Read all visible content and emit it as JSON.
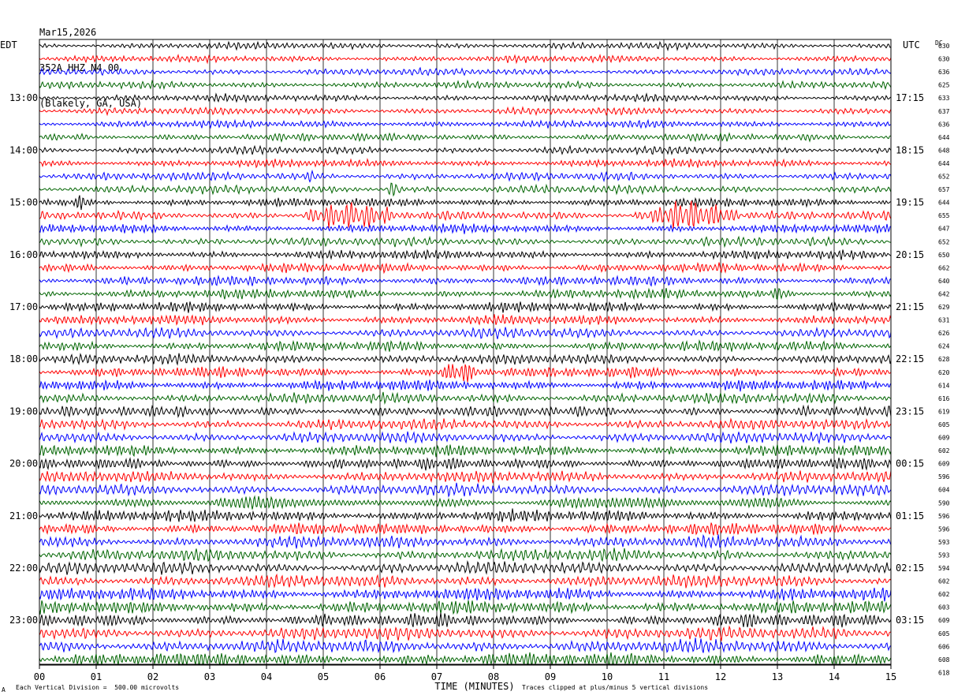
{
  "header": {
    "date": "Mar15,2026",
    "station": "352A HHZ N4 00",
    "location": "(Blakely, GA, USA)"
  },
  "left_tz": "EDT",
  "right_tz": "UTC",
  "dc_label": "DC",
  "footer": {
    "left_mark": "A",
    "scale_note": "Each Vertical Division =  500.00 microvolts",
    "clip_note": "Traces clipped at plus/minus 5 vertical divisions"
  },
  "colors": {
    "trace_cycle": [
      "#000000",
      "#ff0000",
      "#0000ff",
      "#006400"
    ]
  },
  "chart_data": {
    "type": "line",
    "subtype": "helicorder",
    "xlabel": "TIME (MINUTES)",
    "x_ticks": [
      "00",
      "01",
      "02",
      "03",
      "04",
      "05",
      "06",
      "07",
      "08",
      "09",
      "10",
      "11",
      "12",
      "13",
      "14",
      "15"
    ],
    "x_range": [
      0,
      15
    ],
    "rows_per_hour": 4,
    "left_hour_labels": [
      "13:00",
      "14:00",
      "15:00",
      "16:00",
      "17:00",
      "18:00",
      "19:00",
      "20:00",
      "21:00",
      "22:00",
      "23:00"
    ],
    "right_hour_labels": [
      "17:15",
      "18:15",
      "19:15",
      "20:15",
      "21:15",
      "22:15",
      "23:15",
      "00:15",
      "01:15",
      "02:15",
      "03:15"
    ],
    "dc_offsets": [
      630,
      630,
      636,
      625,
      633,
      637,
      636,
      644,
      648,
      644,
      652,
      657,
      644,
      655,
      647,
      652,
      650,
      662,
      640,
      642,
      629,
      631,
      626,
      624,
      628,
      620,
      614,
      616,
      619,
      605,
      609,
      602,
      609,
      596,
      604,
      590,
      596,
      596,
      593,
      593,
      594,
      602,
      602,
      603,
      609,
      605,
      606,
      608,
      618
    ],
    "events": [
      {
        "row": 10,
        "start_min": 4.7,
        "end_min": 4.9,
        "amp": 2.5
      },
      {
        "row": 12,
        "start_min": 0.6,
        "end_min": 0.9,
        "amp": 2.0
      },
      {
        "row": 11,
        "start_min": 6.1,
        "end_min": 6.4,
        "amp": 2.0
      },
      {
        "row": 13,
        "start_min": 4.6,
        "end_min": 6.4,
        "amp": 3.5
      },
      {
        "row": 13,
        "start_min": 10.5,
        "end_min": 12.4,
        "amp": 3.5
      },
      {
        "row": 13,
        "start_min": 11.35,
        "end_min": 11.55,
        "amp": 6.0
      },
      {
        "row": 19,
        "start_min": 12.9,
        "end_min": 13.2,
        "amp": 1.5
      },
      {
        "row": 25,
        "start_min": 7.0,
        "end_min": 7.8,
        "amp": 1.8
      }
    ]
  }
}
